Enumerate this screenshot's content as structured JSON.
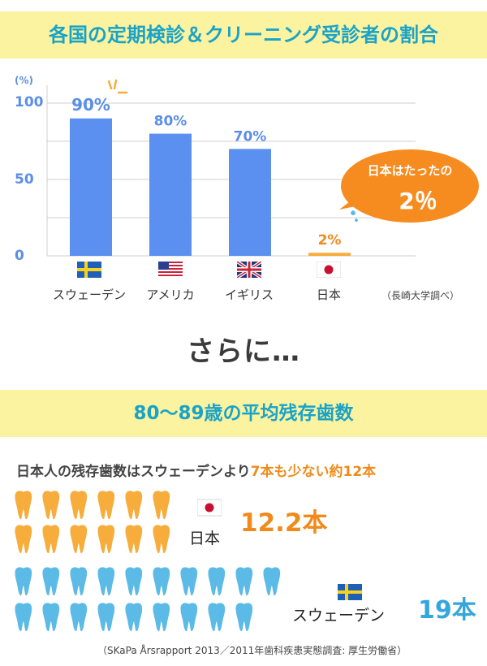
{
  "header": {
    "title": "各国の定期検診＆クリーニング受診者の割合",
    "second_title": "80〜89歳の平均残存歯数"
  },
  "chart_data": {
    "type": "bar",
    "y_unit": "(%)",
    "categories": [
      "スウェーデン",
      "アメリカ",
      "イギリス",
      "日本"
    ],
    "values": [
      90,
      80,
      70,
      2
    ],
    "data_labels": [
      "90%",
      "80%",
      "70%",
      "2%"
    ],
    "y_ticks": [
      "100",
      "50",
      "0"
    ],
    "ylim": [
      0,
      100
    ],
    "grid": true,
    "colors": {
      "bars": "#5b8ff0",
      "japan_bar": "#f6ad3c",
      "label": "#5b8fe6",
      "japan_label": "#f08a1c"
    },
    "source": "（長崎大学調べ）",
    "callout": {
      "line1": "日本はたったの",
      "line2": "2％"
    }
  },
  "transition": "さらに…",
  "comparison": {
    "prefix": "日本人の残存歯数はスウェーデンより",
    "highlight": "7本も少ない約12本",
    "japan": {
      "label": "日本",
      "value": "12.2本",
      "tooth_count": 12,
      "color": "#f6ad3c"
    },
    "sweden": {
      "label": "スウェーデン",
      "value": "19本",
      "tooth_count": 19,
      "color": "#5bbbe6"
    }
  },
  "footer": {
    "source": "（SKaPa Årsrapport 2013／2011年歯科疾患実態調査: 厚生労働省）"
  }
}
